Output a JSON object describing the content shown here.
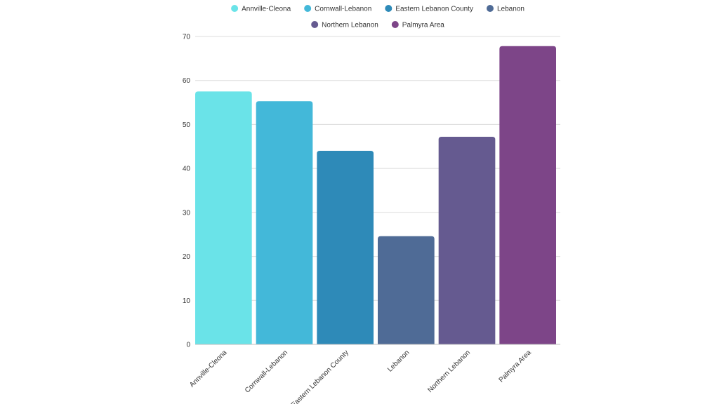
{
  "chart_data": {
    "type": "bar",
    "title": "",
    "xlabel": "",
    "ylabel": "",
    "categories": [
      "Annville-Cleona",
      "Cornwall-Lebanon",
      "Eastern Lebanon County",
      "Lebanon",
      "Northern Lebanon",
      "Palmyra Area"
    ],
    "values": [
      57.5,
      55.3,
      44.0,
      24.6,
      47.2,
      67.8
    ],
    "colors": [
      "#6ae3e8",
      "#43b8d9",
      "#2e8ab8",
      "#4f6b96",
      "#655a90",
      "#7d4588"
    ],
    "ylim": [
      0,
      70
    ],
    "yticks": [
      0,
      10,
      20,
      30,
      40,
      50,
      60,
      70
    ],
    "grid": true,
    "legend": {
      "position": "top-center",
      "entries": [
        "Annville-Cleona",
        "Cornwall-Lebanon",
        "Eastern Lebanon County",
        "Lebanon",
        "Northern Lebanon",
        "Palmyra Area"
      ]
    }
  }
}
